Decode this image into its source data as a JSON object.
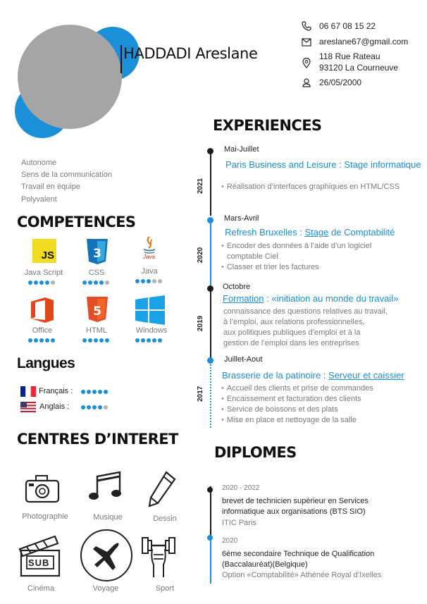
{
  "header": {
    "name": "HADDADI Areslane",
    "phone": "06 67 08 15 22",
    "email": "areslane67@gmail.com",
    "address_line1": "118 Rue Rateau",
    "address_line2": "93120 La Courneuve",
    "birthdate": "26/05/2000"
  },
  "qualities": [
    "Autonome",
    "Sens de la communication",
    "Travail en équipe",
    "Polyvalent"
  ],
  "competences": {
    "title": "COMPETENCES",
    "skills": [
      {
        "label": "Java Script",
        "icon": "js-icon",
        "level": 4
      },
      {
        "label": "CSS",
        "icon": "css3-icon",
        "level": 4
      },
      {
        "label": "Java",
        "icon": "java-icon",
        "level": 3
      },
      {
        "label": "Office",
        "icon": "office-icon",
        "level": 5
      },
      {
        "label": "HTML",
        "icon": "html5-icon",
        "level": 5
      },
      {
        "label": "Windows",
        "icon": "windows-icon",
        "level": 5
      }
    ],
    "java_logo_text": "Java"
  },
  "langues": {
    "title": "Langues",
    "items": [
      {
        "label": "Français :",
        "level": 5,
        "flag": "france-flag-icon"
      },
      {
        "label": "Anglais :",
        "level": 4,
        "flag": "usa-flag-icon"
      }
    ]
  },
  "interets": {
    "title": "CENTRES D’INTERET",
    "items": [
      "Photographie",
      "Musique",
      "Dessin",
      "Cinéma",
      "Voyage",
      "Sport"
    ],
    "clap_text": "SUB"
  },
  "experiences": {
    "title": "EXPERIENCES",
    "items": [
      {
        "year": "2021",
        "period": "Mai-Juillet",
        "company": "Paris Business and Leisure : Stage informatique",
        "lines": [
          "Réalisation d’interfaces graphiques en HTML/CSS"
        ]
      },
      {
        "year": "2020",
        "period": "Mars-Avril",
        "company_a": "Refresh Bruxelles : ",
        "company_b": "Stage",
        "company_c": " de Comptabilité",
        "lines": [
          "Encoder des données à l’aide d’un logiciel",
          "comptable Ciel",
          "Classer et trier les factures"
        ]
      },
      {
        "year": "2019",
        "period": "Octobre",
        "company_a": "Formation",
        "company_b": " : «initiation au monde du travail»",
        "lines": [
          "connaissance des questions relatives au travail,",
          "à l’emploi, aux relations professionnelles,",
          "aux politiques publiques d’emploi et à la",
          "gestion de l’emploi dans les entreprises"
        ]
      },
      {
        "year": "2017",
        "period": "Juillet-Aout",
        "company_a": "Brasserie de la patinoire : ",
        "company_b": "Serveur et caissier",
        "lines": [
          "Accueil des clients et prise de commandes",
          "Encaissement et facturation des clients",
          "Service de boissons et des plats",
          "Mise en place et nettoyage de la salle"
        ]
      }
    ]
  },
  "diplomes": {
    "title": "DIPLOMES",
    "items": [
      {
        "period": "2020 - 2022",
        "line1": "brevet de technicien supérieur en Services",
        "line2": "informatique aux organisations (BTS SIO)",
        "school": "ITIC Paris"
      },
      {
        "period": "2020",
        "line1": "6éme secondaire Technique de Qualification",
        "line2": "(Baccalauréat)(Belgique)",
        "school": "Option «Comptabilité» Athénée Royal d’Ixelles"
      }
    ]
  },
  "colors": {
    "accent": "#1b8fd8",
    "photo": "#a5a5a5"
  }
}
